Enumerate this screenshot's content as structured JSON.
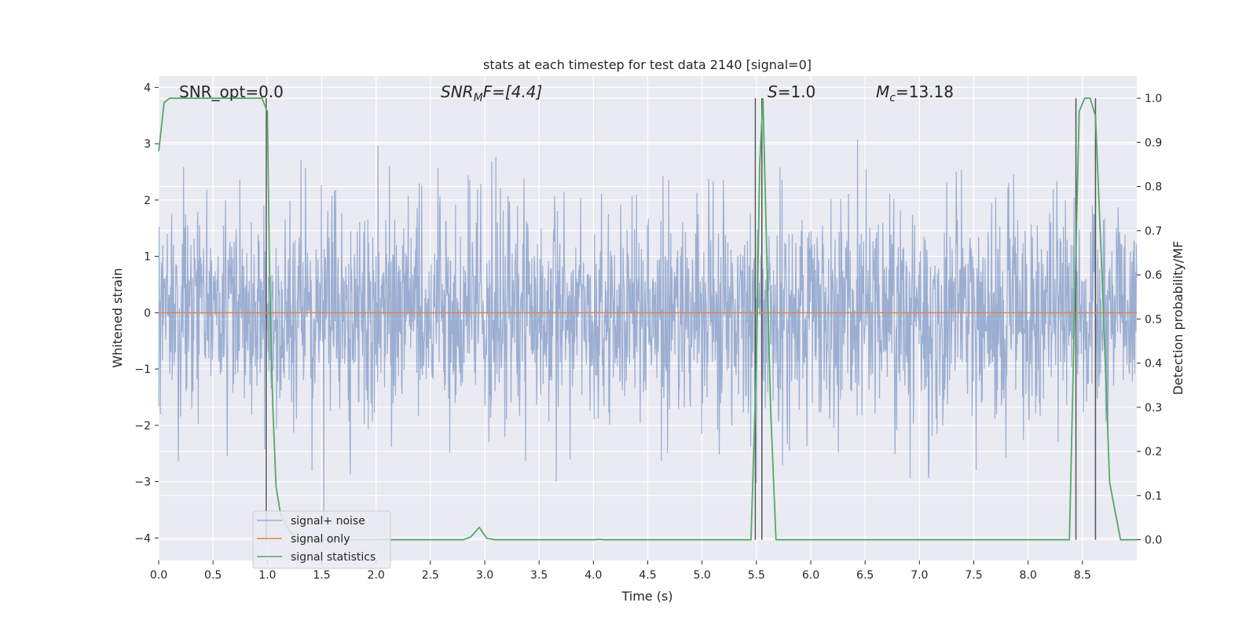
{
  "chart_data": {
    "type": "line",
    "title": "stats at each timestep for test data 2140 [signal=0]",
    "xlabel": "Time (s)",
    "ylabel_left": "Whitened strain",
    "ylabel_right": "Detection probability/MF",
    "xlim": [
      0.0,
      9.0
    ],
    "ylim_left": [
      -4.4,
      4.2
    ],
    "ylim_right": [
      -0.047,
      1.05
    ],
    "x_ticks": [
      "0.0",
      "0.5",
      "1.0",
      "1.5",
      "2.0",
      "2.5",
      "3.0",
      "3.5",
      "4.0",
      "4.5",
      "5.0",
      "5.5",
      "6.0",
      "6.5",
      "7.0",
      "7.5",
      "8.0",
      "8.5"
    ],
    "y_ticks_left": [
      "4",
      "3",
      "2",
      "1",
      "0",
      "−1",
      "−2",
      "−3",
      "−4"
    ],
    "y_ticks_right": [
      "1.0",
      "0.9",
      "0.8",
      "0.7",
      "0.6",
      "0.5",
      "0.4",
      "0.3",
      "0.2",
      "0.1",
      "0.0"
    ],
    "grid": true,
    "legend_position": "lower-left",
    "annotations": {
      "snr_opt": "SNR_opt=0.0",
      "snr_mf_prefix": "SNR",
      "snr_mf_sub": "M",
      "snr_mf_rest": "F=[4.4]",
      "s_symbol": "S",
      "s_rest": "=1.0",
      "mc_symbol": "M",
      "mc_sub": "c",
      "mc_rest": "=13.18"
    },
    "series": [
      {
        "name": "signal+ noise",
        "axis": "left",
        "color": "#4c72b0",
        "opacity": 0.5,
        "kind": "noisy strain, 2048 Hz, approx. within ±2.3 with peaks to ±4",
        "std": 0.95
      },
      {
        "name": "signal only",
        "axis": "left",
        "color": "#dd8452",
        "x": [
          0.0,
          9.0
        ],
        "y": [
          0.0,
          0.0
        ]
      },
      {
        "name": "signal statistics",
        "axis": "right",
        "color": "#55a868",
        "x": [
          0.0,
          0.05,
          0.1,
          0.2,
          0.3,
          0.5,
          0.7,
          0.95,
          1.0,
          1.02,
          1.05,
          1.08,
          1.12,
          1.2,
          1.3,
          1.5,
          2.0,
          2.5,
          2.8,
          2.87,
          2.95,
          3.02,
          3.1,
          3.5,
          4.0,
          4.05,
          4.1,
          4.5,
          5.0,
          5.45,
          5.5,
          5.53,
          5.56,
          5.59,
          5.63,
          5.68,
          6.0,
          7.0,
          8.0,
          8.38,
          8.43,
          8.47,
          8.52,
          8.57,
          8.62,
          8.68,
          8.75,
          8.85,
          8.92,
          9.0
        ],
        "y": [
          0.88,
          0.99,
          1.0,
          1.0,
          1.0,
          1.0,
          1.0,
          1.0,
          0.97,
          0.6,
          0.3,
          0.12,
          0.06,
          0.02,
          0.0,
          0.0,
          0.0,
          0.0,
          0.0,
          0.006,
          0.028,
          0.003,
          0.0,
          0.0,
          0.0,
          0.001,
          0.0,
          0.0,
          0.0,
          0.0,
          0.4,
          0.85,
          1.0,
          0.7,
          0.3,
          0.0,
          0.0,
          0.0,
          0.0,
          0.0,
          0.55,
          0.97,
          1.0,
          1.0,
          0.96,
          0.6,
          0.13,
          0.0,
          0.0,
          0.0
        ]
      }
    ],
    "vertical_lines": [
      {
        "x": 0.99,
        "y_right": [
          0.0,
          1.0
        ]
      },
      {
        "x": 5.49,
        "y_right": [
          0.0,
          1.0
        ]
      },
      {
        "x": 5.55,
        "y_right": [
          0.0,
          1.0
        ]
      },
      {
        "x": 8.44,
        "y_right": [
          0.0,
          1.0
        ]
      },
      {
        "x": 8.62,
        "y_right": [
          0.0,
          1.0
        ]
      }
    ],
    "colors": {
      "plot_background": "#eaeaf2",
      "grid": "#ffffff",
      "vertical_lines": "#555555"
    }
  }
}
